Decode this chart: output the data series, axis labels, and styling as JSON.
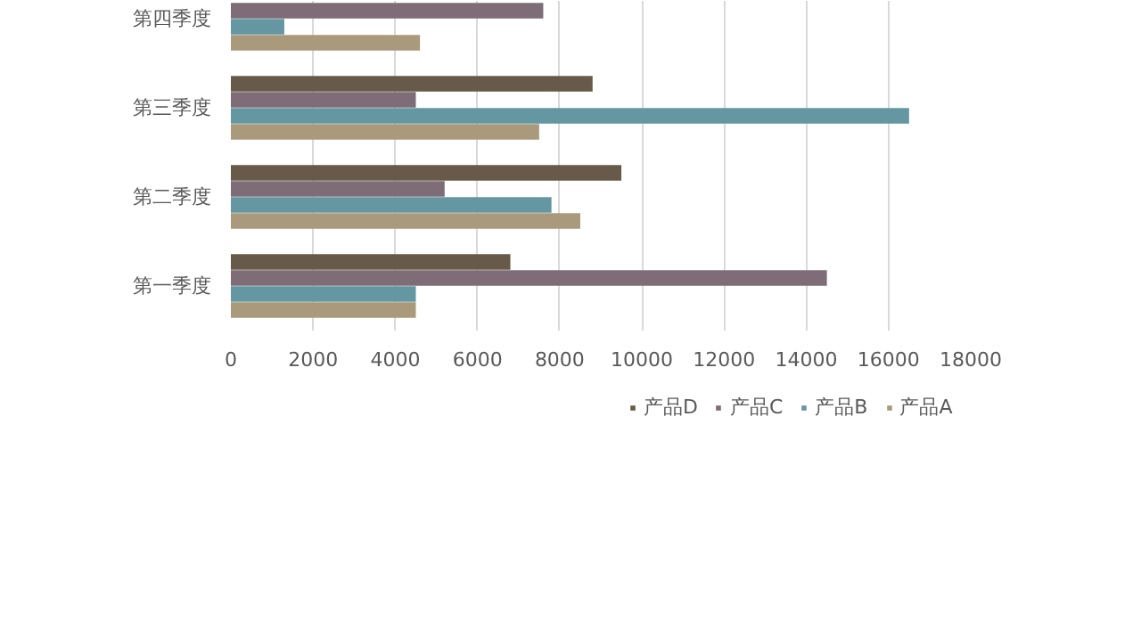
{
  "chart_data": {
    "type": "bar",
    "orientation": "horizontal",
    "categories": [
      "第四季度",
      "第三季度",
      "第二季度",
      "第一季度"
    ],
    "series": [
      {
        "name": "产品D",
        "color": "#675a48",
        "values": [
          null,
          8800,
          9500,
          6800
        ]
      },
      {
        "name": "产品C",
        "color": "#7e6d77",
        "values": [
          7600,
          4500,
          5200,
          14500
        ]
      },
      {
        "name": "产品B",
        "color": "#6497a1",
        "values": [
          1300,
          16500,
          7800,
          4500
        ]
      },
      {
        "name": "产品A",
        "color": "#aa9a7c",
        "values": [
          4600,
          7500,
          8500,
          4500
        ]
      }
    ],
    "xlim": [
      0,
      18000
    ],
    "xticks": [
      0,
      2000,
      4000,
      6000,
      8000,
      10000,
      12000,
      14000,
      16000,
      18000
    ],
    "grid": "x",
    "legend": "bottom"
  }
}
